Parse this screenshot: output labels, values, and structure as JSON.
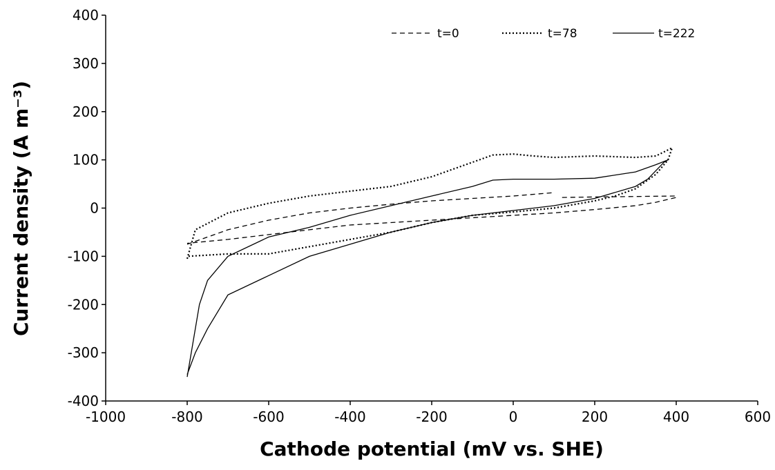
{
  "chart_data": {
    "type": "line",
    "x_label": "Cathode potential (mV vs. SHE)",
    "y_label": "Current density (A m⁻³)",
    "xlim": [
      -1000,
      600
    ],
    "xticks": [
      -1000,
      -800,
      -600,
      -400,
      -200,
      0,
      200,
      400,
      600
    ],
    "ylim": [
      -400,
      400
    ],
    "yticks": [
      -400,
      -300,
      -200,
      -100,
      0,
      100,
      200,
      300,
      400
    ],
    "grid": false,
    "legend": "upper right",
    "series": [
      {
        "name": "t=0",
        "color": "#000000",
        "dash": "dashed",
        "x": [
          -800,
          -700,
          -600,
          -500,
          -400,
          -300,
          -200,
          -100,
          0,
          100,
          null,
          120,
          200,
          300,
          400,
          400,
          350,
          300,
          200,
          100,
          0,
          -100,
          -200,
          -300,
          -400,
          -500,
          -600,
          -700,
          -800
        ],
        "values": [
          -75,
          -45,
          -25,
          -10,
          0,
          8,
          15,
          20,
          25,
          32,
          null,
          22,
          23,
          24,
          25,
          22,
          12,
          5,
          -3,
          -10,
          -15,
          -20,
          -25,
          -30,
          -35,
          -45,
          -55,
          -65,
          -73
        ]
      },
      {
        "name": "t=78",
        "color": "#000000",
        "dash": "dotted",
        "x": [
          -800,
          -780,
          -700,
          -600,
          -500,
          -400,
          -300,
          -200,
          -100,
          -50,
          0,
          50,
          100,
          200,
          300,
          350,
          390,
          380,
          350,
          300,
          250,
          200,
          100,
          0,
          -100,
          -200,
          -300,
          -400,
          -500,
          -600,
          -700,
          -800
        ],
        "values": [
          -105,
          -45,
          -10,
          10,
          25,
          35,
          45,
          65,
          95,
          110,
          112,
          108,
          105,
          108,
          105,
          108,
          125,
          100,
          70,
          40,
          25,
          15,
          0,
          -8,
          -15,
          -30,
          -50,
          -65,
          -80,
          -95,
          -95,
          -100
        ]
      },
      {
        "name": "t=222",
        "color": "#000000",
        "dash": "solid",
        "x": [
          -800,
          -790,
          -770,
          -750,
          -700,
          -600,
          -500,
          -400,
          -300,
          -200,
          -100,
          -50,
          0,
          100,
          200,
          300,
          350,
          380,
          370,
          330,
          300,
          200,
          100,
          0,
          -100,
          -200,
          -300,
          -400,
          -500,
          -600,
          -700,
          -750,
          -780,
          -800
        ],
        "values": [
          -350,
          -300,
          -200,
          -150,
          -100,
          -60,
          -40,
          -15,
          5,
          25,
          45,
          58,
          60,
          60,
          62,
          75,
          90,
          100,
          95,
          60,
          45,
          20,
          5,
          -5,
          -15,
          -30,
          -50,
          -75,
          -100,
          -140,
          -180,
          -250,
          -300,
          -345
        ]
      }
    ]
  }
}
